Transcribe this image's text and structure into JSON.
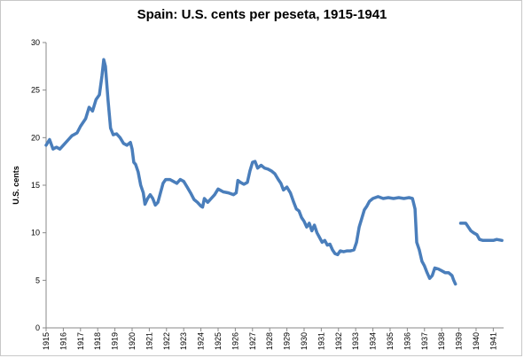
{
  "chart_data": {
    "type": "line",
    "title": "Spain: U.S. cents per peseta, 1915-1941",
    "xlabel": "",
    "ylabel": "U.S. cents",
    "xlim": [
      1915,
      1941.6
    ],
    "ylim": [
      0,
      30
    ],
    "y_ticks": [
      0,
      5,
      10,
      15,
      20,
      25,
      30
    ],
    "x_ticks": [
      1915,
      1916,
      1917,
      1918,
      1919,
      1920,
      1921,
      1922,
      1923,
      1924,
      1925,
      1926,
      1927,
      1928,
      1929,
      1930,
      1931,
      1932,
      1933,
      1934,
      1935,
      1936,
      1937,
      1938,
      1939,
      1940,
      1941
    ],
    "grid": false,
    "legend": "none",
    "line_color": "#4a7ebb",
    "series": [
      {
        "name": "",
        "segments": [
          [
            [
              1915.0,
              19.2
            ],
            [
              1915.2,
              19.8
            ],
            [
              1915.4,
              18.8
            ],
            [
              1915.6,
              19.0
            ],
            [
              1915.8,
              18.8
            ],
            [
              1916.0,
              19.2
            ],
            [
              1916.3,
              19.8
            ],
            [
              1916.5,
              20.2
            ],
            [
              1916.8,
              20.5
            ],
            [
              1917.0,
              21.2
            ],
            [
              1917.3,
              22.0
            ],
            [
              1917.5,
              23.2
            ],
            [
              1917.7,
              22.8
            ],
            [
              1917.9,
              24.0
            ],
            [
              1918.1,
              24.5
            ],
            [
              1918.25,
              26.5
            ],
            [
              1918.35,
              28.2
            ],
            [
              1918.45,
              27.5
            ],
            [
              1918.6,
              24.0
            ],
            [
              1918.75,
              21.0
            ],
            [
              1918.9,
              20.3
            ],
            [
              1919.1,
              20.4
            ],
            [
              1919.3,
              20.0
            ],
            [
              1919.5,
              19.4
            ],
            [
              1919.7,
              19.2
            ],
            [
              1919.9,
              19.5
            ],
            [
              1920.0,
              18.8
            ],
            [
              1920.1,
              17.4
            ],
            [
              1920.2,
              17.2
            ],
            [
              1920.35,
              16.4
            ],
            [
              1920.5,
              15.0
            ],
            [
              1920.65,
              14.2
            ],
            [
              1920.75,
              13.0
            ],
            [
              1920.9,
              13.6
            ],
            [
              1921.05,
              14.0
            ],
            [
              1921.2,
              13.6
            ],
            [
              1921.35,
              12.9
            ],
            [
              1921.5,
              13.2
            ],
            [
              1921.65,
              14.2
            ],
            [
              1921.8,
              15.2
            ],
            [
              1921.95,
              15.6
            ],
            [
              1922.2,
              15.6
            ],
            [
              1922.4,
              15.4
            ],
            [
              1922.6,
              15.2
            ],
            [
              1922.8,
              15.6
            ],
            [
              1923.0,
              15.4
            ],
            [
              1923.2,
              14.8
            ],
            [
              1923.4,
              14.2
            ],
            [
              1923.6,
              13.5
            ],
            [
              1923.8,
              13.2
            ],
            [
              1924.0,
              12.8
            ],
            [
              1924.1,
              12.7
            ],
            [
              1924.2,
              13.6
            ],
            [
              1924.4,
              13.2
            ],
            [
              1924.6,
              13.6
            ],
            [
              1924.8,
              14.0
            ],
            [
              1925.0,
              14.6
            ],
            [
              1925.3,
              14.3
            ],
            [
              1925.6,
              14.2
            ],
            [
              1925.9,
              14.0
            ],
            [
              1926.05,
              14.2
            ],
            [
              1926.15,
              15.5
            ],
            [
              1926.3,
              15.3
            ],
            [
              1926.5,
              15.1
            ],
            [
              1926.7,
              15.3
            ],
            [
              1926.85,
              16.5
            ],
            [
              1927.0,
              17.4
            ],
            [
              1927.15,
              17.5
            ],
            [
              1927.3,
              16.8
            ],
            [
              1927.5,
              17.1
            ],
            [
              1927.7,
              16.8
            ],
            [
              1927.9,
              16.7
            ],
            [
              1928.1,
              16.5
            ],
            [
              1928.3,
              16.2
            ],
            [
              1928.5,
              15.6
            ],
            [
              1928.65,
              15.2
            ],
            [
              1928.8,
              14.5
            ],
            [
              1929.0,
              14.8
            ],
            [
              1929.2,
              14.2
            ],
            [
              1929.4,
              13.2
            ],
            [
              1929.55,
              12.5
            ],
            [
              1929.7,
              12.3
            ],
            [
              1929.85,
              11.6
            ],
            [
              1930.0,
              11.2
            ],
            [
              1930.15,
              10.6
            ],
            [
              1930.3,
              11.0
            ],
            [
              1930.45,
              10.2
            ],
            [
              1930.6,
              10.8
            ],
            [
              1930.75,
              10.0
            ],
            [
              1930.9,
              9.5
            ],
            [
              1931.05,
              9.0
            ],
            [
              1931.2,
              9.2
            ],
            [
              1931.35,
              8.7
            ],
            [
              1931.5,
              8.8
            ],
            [
              1931.65,
              8.2
            ],
            [
              1931.8,
              7.8
            ],
            [
              1931.95,
              7.7
            ],
            [
              1932.1,
              8.1
            ],
            [
              1932.3,
              8.0
            ],
            [
              1932.5,
              8.1
            ],
            [
              1932.7,
              8.1
            ],
            [
              1932.9,
              8.2
            ],
            [
              1933.05,
              9.0
            ],
            [
              1933.2,
              10.6
            ],
            [
              1933.35,
              11.5
            ],
            [
              1933.5,
              12.4
            ],
            [
              1933.65,
              12.8
            ],
            [
              1933.8,
              13.3
            ],
            [
              1934.0,
              13.6
            ],
            [
              1934.3,
              13.8
            ],
            [
              1934.6,
              13.6
            ],
            [
              1934.9,
              13.7
            ],
            [
              1935.2,
              13.6
            ],
            [
              1935.5,
              13.7
            ],
            [
              1935.8,
              13.6
            ],
            [
              1936.1,
              13.7
            ],
            [
              1936.3,
              13.6
            ],
            [
              1936.45,
              12.5
            ],
            [
              1936.55,
              9.0
            ],
            [
              1936.7,
              8.2
            ],
            [
              1936.85,
              7.0
            ],
            [
              1937.0,
              6.5
            ],
            [
              1937.15,
              5.8
            ],
            [
              1937.3,
              5.2
            ],
            [
              1937.45,
              5.5
            ],
            [
              1937.6,
              6.3
            ],
            [
              1937.8,
              6.2
            ],
            [
              1938.0,
              6.0
            ],
            [
              1938.2,
              5.8
            ],
            [
              1938.4,
              5.8
            ],
            [
              1938.6,
              5.5
            ],
            [
              1938.7,
              5.0
            ],
            [
              1938.8,
              4.6
            ]
          ],
          [
            [
              1939.1,
              11.0
            ],
            [
              1939.4,
              11.0
            ],
            [
              1939.55,
              10.6
            ],
            [
              1939.7,
              10.2
            ],
            [
              1939.85,
              10.0
            ],
            [
              1940.05,
              9.8
            ],
            [
              1940.2,
              9.3
            ],
            [
              1940.4,
              9.2
            ],
            [
              1940.7,
              9.2
            ],
            [
              1941.0,
              9.2
            ],
            [
              1941.2,
              9.3
            ],
            [
              1941.5,
              9.2
            ]
          ]
        ]
      }
    ]
  }
}
